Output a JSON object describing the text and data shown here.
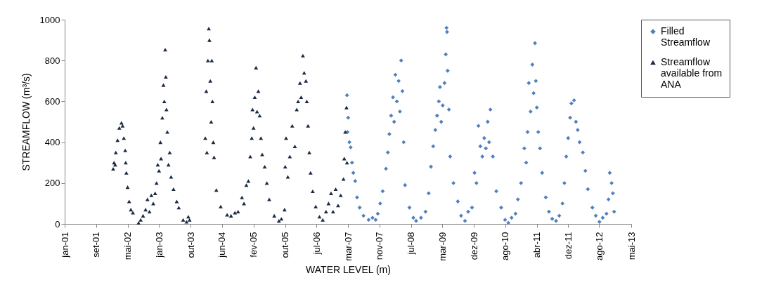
{
  "chart_data": {
    "type": "scatter",
    "xlabel": "WATER LEVEL (m)",
    "ylabel": "STREAMFLOW (m³/s)",
    "xlim": [
      "2001-01-04",
      "2013-05-10"
    ],
    "xticks": [
      {
        "value": "2001-01-04",
        "label": "jan-01"
      },
      {
        "value": "2001-09-12",
        "label": "set-01"
      },
      {
        "value": "2002-05-20",
        "label": "mai-02"
      },
      {
        "value": "2003-01-26",
        "label": "jan-03"
      },
      {
        "value": "2003-10-03",
        "label": "out-03"
      },
      {
        "value": "2004-06-10",
        "label": "jun-04"
      },
      {
        "value": "2005-02-15",
        "label": "fev-05"
      },
      {
        "value": "2005-10-24",
        "label": "out-05"
      },
      {
        "value": "2006-07-01",
        "label": "jul-06"
      },
      {
        "value": "2007-03-09",
        "label": "mar-07"
      },
      {
        "value": "2007-11-14",
        "label": "nov-07"
      },
      {
        "value": "2008-07-22",
        "label": "jul-08"
      },
      {
        "value": "2009-03-29",
        "label": "mar-09"
      },
      {
        "value": "2009-12-05",
        "label": "dez-09"
      },
      {
        "value": "2010-08-12",
        "label": "ago-10"
      },
      {
        "value": "2011-04-20",
        "label": "abr-11"
      },
      {
        "value": "2011-12-26",
        "label": "dez-11"
      },
      {
        "value": "2012-08-28",
        "label": "ago-12"
      },
      {
        "value": "2013-05-10",
        "label": "mai-13"
      }
    ],
    "ylim": [
      0,
      1000
    ],
    "yticks": [
      0,
      200,
      400,
      600,
      800,
      1000
    ],
    "grid": false,
    "legend": "right",
    "series": [
      {
        "name": "Filled Streamflow",
        "color": "#4f81bd",
        "marker": "diamond",
        "x": [
          "2007-03-01",
          "2007-03-05",
          "2007-03-10",
          "2007-03-20",
          "2007-03-30",
          "2007-04-10",
          "2007-04-20",
          "2007-05-05",
          "2007-05-20",
          "2007-06-10",
          "2007-07-10",
          "2007-08-20",
          "2007-09-20",
          "2007-10-15",
          "2007-11-01",
          "2007-11-20",
          "2007-12-10",
          "2008-01-05",
          "2008-01-20",
          "2008-02-01",
          "2008-02-15",
          "2008-03-01",
          "2008-03-10",
          "2008-03-20",
          "2008-04-01",
          "2008-04-15",
          "2008-04-25",
          "2008-05-05",
          "2008-05-15",
          "2008-05-25",
          "2008-06-05",
          "2008-07-10",
          "2008-08-10",
          "2008-09-01",
          "2008-10-10",
          "2008-11-15",
          "2008-12-10",
          "2008-12-28",
          "2009-01-15",
          "2009-02-01",
          "2009-02-15",
          "2009-03-01",
          "2009-03-10",
          "2009-03-20",
          "2009-04-01",
          "2009-04-15",
          "2009-04-25",
          "2009-05-01",
          "2009-05-05",
          "2009-05-10",
          "2009-05-20",
          "2009-05-30",
          "2009-06-25",
          "2009-07-30",
          "2009-08-25",
          "2009-09-25",
          "2009-10-20",
          "2009-11-20",
          "2009-12-10",
          "2009-12-25",
          "2010-01-10",
          "2010-01-25",
          "2010-02-10",
          "2010-02-25",
          "2010-03-10",
          "2010-03-25",
          "2010-04-05",
          "2010-04-15",
          "2010-05-05",
          "2010-06-01",
          "2010-07-10",
          "2010-08-10",
          "2010-09-05",
          "2010-10-01",
          "2010-11-01",
          "2010-11-20",
          "2010-12-15",
          "2011-01-10",
          "2011-01-25",
          "2011-02-05",
          "2011-02-15",
          "2011-03-01",
          "2011-03-15",
          "2011-03-25",
          "2011-04-05",
          "2011-04-12",
          "2011-04-20",
          "2011-05-01",
          "2011-05-15",
          "2011-06-01",
          "2011-06-30",
          "2011-07-25",
          "2011-08-20",
          "2011-09-20",
          "2011-10-15",
          "2011-11-10",
          "2011-11-25",
          "2011-12-10",
          "2011-12-25",
          "2012-01-10",
          "2012-01-20",
          "2012-02-10",
          "2012-02-25",
          "2012-03-10",
          "2012-03-25",
          "2012-04-20",
          "2012-05-10",
          "2012-05-30",
          "2012-07-05",
          "2012-08-01",
          "2012-08-30",
          "2012-09-25",
          "2012-10-25",
          "2012-11-10",
          "2012-11-20",
          "2012-12-05",
          "2012-12-15",
          "2012-12-25"
        ],
        "values": [
          630,
          450,
          520,
          400,
          375,
          300,
          250,
          210,
          130,
          80,
          40,
          20,
          30,
          20,
          50,
          100,
          160,
          270,
          350,
          440,
          530,
          620,
          500,
          730,
          600,
          700,
          550,
          800,
          650,
          400,
          190,
          80,
          30,
          15,
          30,
          60,
          150,
          280,
          380,
          460,
          530,
          600,
          670,
          500,
          580,
          690,
          830,
          960,
          940,
          750,
          560,
          330,
          200,
          110,
          40,
          15,
          60,
          80,
          250,
          200,
          480,
          380,
          330,
          420,
          370,
          500,
          400,
          560,
          330,
          160,
          80,
          20,
          5,
          30,
          50,
          120,
          200,
          370,
          300,
          450,
          690,
          550,
          780,
          640,
          885,
          700,
          570,
          450,
          370,
          250,
          130,
          60,
          25,
          15,
          40,
          100,
          200,
          330,
          420,
          520,
          590,
          605,
          500,
          460,
          400,
          350,
          260,
          170,
          80,
          40,
          10,
          30,
          50,
          120,
          250,
          200,
          150,
          60
        ]
      },
      {
        "name": "Streamflow available from ANA",
        "color": "#1b2a44",
        "marker": "triangle",
        "x": [
          "2002-01-25",
          "2002-02-01",
          "2002-02-10",
          "2002-02-15",
          "2002-03-01",
          "2002-03-15",
          "2002-04-01",
          "2002-04-10",
          "2002-04-20",
          "2002-05-01",
          "2002-05-05",
          "2002-05-10",
          "2002-05-20",
          "2002-06-01",
          "2002-06-15",
          "2002-07-01",
          "2002-08-15",
          "2002-09-01",
          "2002-09-20",
          "2002-10-10",
          "2002-10-25",
          "2002-11-10",
          "2002-11-25",
          "2002-12-10",
          "2002-12-25",
          "2003-01-05",
          "2003-01-15",
          "2003-01-25",
          "2003-02-05",
          "2003-02-10",
          "2003-02-20",
          "2003-03-01",
          "2003-03-08",
          "2003-03-15",
          "2003-03-20",
          "2003-03-25",
          "2003-04-01",
          "2003-04-10",
          "2003-04-20",
          "2003-05-01",
          "2003-05-20",
          "2003-06-15",
          "2003-07-01",
          "2003-08-05",
          "2003-09-01",
          "2003-09-15",
          "2003-09-25",
          "2004-01-28",
          "2004-02-05",
          "2004-02-10",
          "2004-02-18",
          "2004-02-25",
          "2004-03-01",
          "2004-03-08",
          "2004-03-15",
          "2004-03-20",
          "2004-03-25",
          "2004-04-01",
          "2004-04-07",
          "2004-04-25",
          "2004-05-30",
          "2004-07-20",
          "2004-08-20",
          "2004-09-20",
          "2004-10-15",
          "2004-11-15",
          "2004-12-01",
          "2004-12-20",
          "2005-01-05",
          "2005-01-20",
          "2005-02-01",
          "2005-02-07",
          "2005-02-15",
          "2005-02-25",
          "2005-03-07",
          "2005-03-15",
          "2005-03-25",
          "2005-04-05",
          "2005-04-15",
          "2005-04-25",
          "2005-05-15",
          "2005-06-01",
          "2005-06-20",
          "2005-07-30",
          "2005-09-05",
          "2005-09-25",
          "2005-10-20",
          "2005-10-25",
          "2005-11-01",
          "2005-11-15",
          "2005-12-01",
          "2005-12-20",
          "2006-01-10",
          "2006-01-25",
          "2006-02-05",
          "2006-02-20",
          "2006-03-01",
          "2006-03-15",
          "2006-03-25",
          "2006-04-08",
          "2006-04-15",
          "2006-04-25",
          "2006-05-05",
          "2006-05-15",
          "2006-06-01",
          "2006-06-25",
          "2006-07-25",
          "2006-08-20",
          "2006-09-15",
          "2006-10-05",
          "2006-10-25",
          "2006-11-10",
          "2006-12-01",
          "2006-12-20",
          "2007-01-10",
          "2007-02-01",
          "2007-02-07",
          "2007-02-15",
          "2007-02-25",
          "2007-03-01"
        ],
        "values": [
          270,
          300,
          290,
          350,
          410,
          470,
          495,
          480,
          420,
          360,
          300,
          250,
          180,
          110,
          70,
          55,
          5,
          20,
          40,
          70,
          120,
          60,
          140,
          100,
          150,
          200,
          290,
          260,
          400,
          320,
          520,
          680,
          600,
          853,
          720,
          560,
          450,
          290,
          350,
          230,
          170,
          110,
          80,
          20,
          10,
          35,
          20,
          420,
          650,
          350,
          800,
          956,
          900,
          700,
          500,
          800,
          600,
          400,
          326,
          166,
          85,
          45,
          40,
          55,
          60,
          130,
          100,
          190,
          210,
          330,
          420,
          560,
          470,
          620,
          765,
          550,
          650,
          530,
          420,
          340,
          280,
          200,
          120,
          40,
          15,
          25,
          70,
          280,
          420,
          230,
          330,
          480,
          380,
          560,
          600,
          690,
          620,
          824,
          740,
          700,
          600,
          480,
          350,
          250,
          160,
          85,
          35,
          20,
          60,
          100,
          150,
          60,
          170,
          90,
          140,
          220,
          320,
          450,
          570,
          300
        ]
      }
    ]
  }
}
